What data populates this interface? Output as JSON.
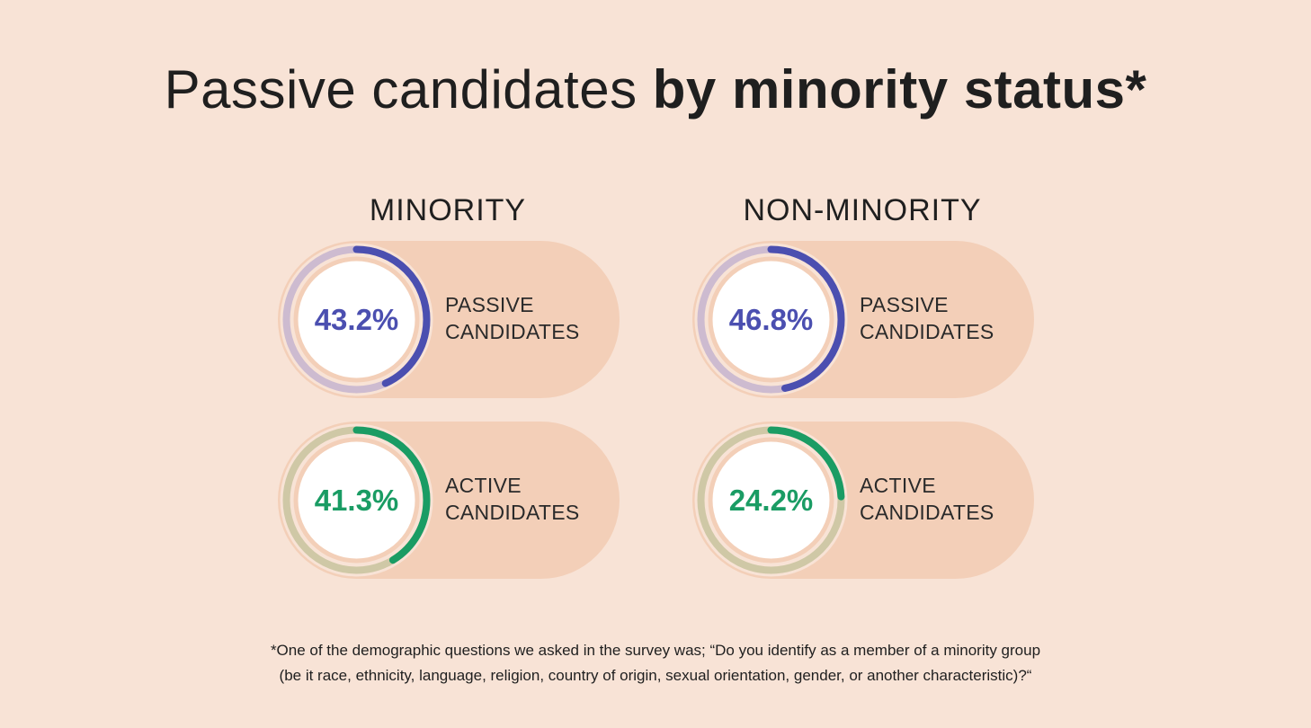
{
  "title": {
    "light": "Passive candidates",
    "bold": "by minority status*"
  },
  "colors": {
    "background": "#f8e3d6",
    "pill": "#f3cfb8",
    "passive": "#4b4fb0",
    "passive_track": "#cdbbd0",
    "active": "#1a9c64",
    "active_track": "#cfc8a6"
  },
  "chart_data": {
    "type": "donut",
    "groups": [
      {
        "name": "MINORITY",
        "series": [
          {
            "label_line1": "PASSIVE",
            "label_line2": "CANDIDATES",
            "value": 43.2,
            "display": "43.2%"
          },
          {
            "label_line1": "ACTIVE",
            "label_line2": "CANDIDATES",
            "value": 41.3,
            "display": "41.3%"
          }
        ]
      },
      {
        "name": "NON-MINORITY",
        "series": [
          {
            "label_line1": "PASSIVE",
            "label_line2": "CANDIDATES",
            "value": 46.8,
            "display": "46.8%"
          },
          {
            "label_line1": "ACTIVE",
            "label_line2": "CANDIDATES",
            "value": 24.2,
            "display": "24.2%"
          }
        ]
      }
    ]
  },
  "footnote": {
    "line1": "*One of the demographic questions we asked in the survey was; “Do you identify as a member of a minority group",
    "line2": "(be it race, ethnicity, language, religion, country of origin, sexual orientation, gender, or another characteristic)?“"
  }
}
